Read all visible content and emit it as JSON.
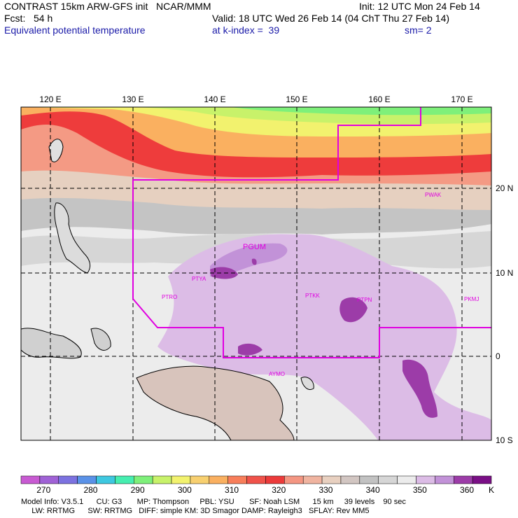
{
  "header": {
    "line1_left": "CONTRAST 15km ARW-GFS init   NCAR/MMM",
    "line1_right": "Init: 12 UTC Mon 24 Feb 14",
    "line2_left": "Fcst:   54 h",
    "line2_right": "Valid: 18 UTC Wed 26 Feb 14 (04 ChT Thu 27 Feb 14)",
    "line3_left": "Equivalent potential temperature",
    "line3_mid": "at k-index =  39",
    "line3_right": "sm= 2"
  },
  "axes": {
    "lon_labels": [
      "120 E",
      "130 E",
      "140 E",
      "150 E",
      "160 E",
      "170 E"
    ],
    "lat_labels": [
      "20 N",
      "10 N",
      "0",
      "10 S"
    ]
  },
  "stations": [
    "PGUM",
    "PTYA",
    "PTRO",
    "PTKK",
    "PTPN",
    "PKMJ",
    "PWAK",
    "AYMO"
  ],
  "colorbar": {
    "unit": "K",
    "labels": [
      "270",
      "280",
      "290",
      "300",
      "310",
      "320",
      "330",
      "340",
      "350",
      "360"
    ],
    "colors": [
      "#c85ad2",
      "#a062d6",
      "#7c72e0",
      "#5a92e8",
      "#3ec8e0",
      "#46eeb0",
      "#7ef07a",
      "#c8f26a",
      "#f2f26e",
      "#f8d070",
      "#fab060",
      "#f87e5a",
      "#f0524a",
      "#ec3a3a",
      "#f49682",
      "#f0b4a0",
      "#e8d0c0",
      "#d2c6c2",
      "#c2c2c2",
      "#d6d6d6",
      "#ececec",
      "#dcbce6",
      "#c292d8",
      "#9c3ca8",
      "#7a0f86"
    ]
  },
  "footer": {
    "line1": "Model Info: V3.5.1      CU: G3       MP: Thompson     PBL: YSU       SF: Noah LSM      15 km     39 levels    90 sec",
    "line2": "     LW: RRTMG      SW: RRTMG   DIFF: simple KM: 3D Smagor DAMP: Rayleigh3   SFLAY: Rev MM5"
  }
}
